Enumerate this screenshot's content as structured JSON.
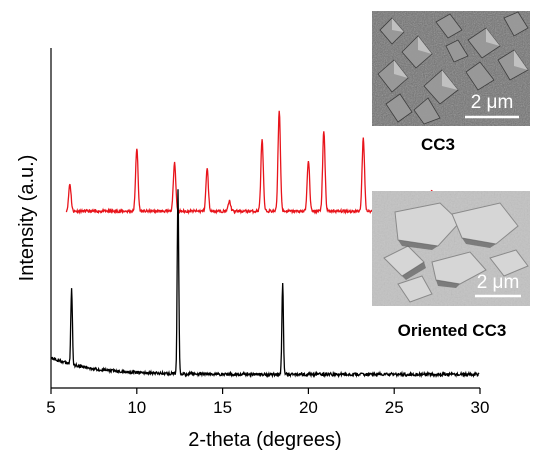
{
  "chart_data": {
    "type": "line",
    "xlabel": "2-theta (degrees)",
    "ylabel": "Intensity (a.u.)",
    "xlim": [
      5,
      30
    ],
    "x_ticks": [
      5,
      10,
      15,
      20,
      25,
      30
    ],
    "x_tick_labels": [
      "5",
      "10",
      "15",
      "20",
      "25",
      "30"
    ],
    "y_ticks_shown": false,
    "grid": false,
    "series": [
      {
        "name": "CC3",
        "color": "#e8141b",
        "baseline": 0.52,
        "peaks": [
          [
            6.1,
            0.08
          ],
          [
            10.0,
            0.185
          ],
          [
            12.2,
            0.145
          ],
          [
            14.1,
            0.125
          ],
          [
            15.4,
            0.03
          ],
          [
            17.3,
            0.21
          ],
          [
            18.3,
            0.295
          ],
          [
            20.0,
            0.15
          ],
          [
            20.9,
            0.235
          ],
          [
            23.2,
            0.215
          ],
          [
            26.5,
            0.025
          ],
          [
            27.2,
            0.06
          ],
          [
            29.1,
            0.015
          ]
        ]
      },
      {
        "name": "Oriented CC3",
        "color": "#000000",
        "baseline": 0.04,
        "peaks": [
          [
            6.2,
            0.225
          ],
          [
            12.4,
            0.54
          ],
          [
            18.5,
            0.265
          ]
        ]
      }
    ],
    "insets": [
      {
        "label": "CC3",
        "scale_bar": "2 μm"
      },
      {
        "label": "Oriented CC3",
        "scale_bar": "2 μm"
      }
    ]
  }
}
